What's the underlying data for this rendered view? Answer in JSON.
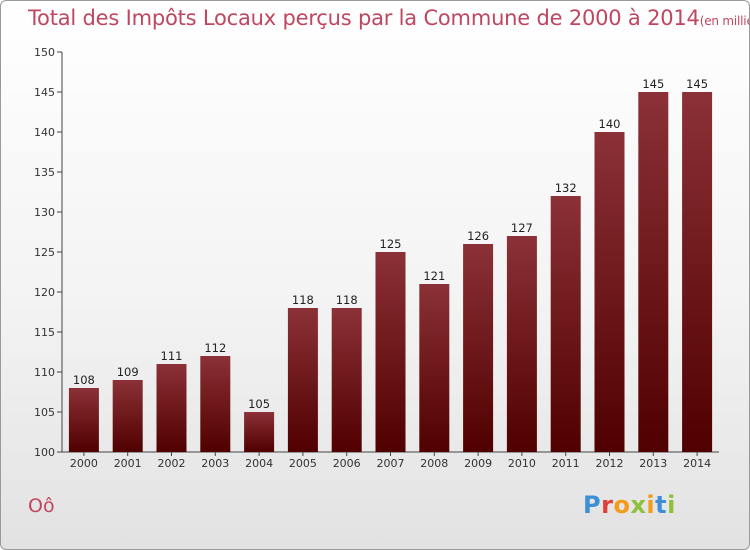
{
  "title": "Total des Impôts Locaux perçus par la Commune de 2000 à 2014",
  "title_unit": "(en milliers d'€)",
  "commune": "Oô",
  "logo_text": "Proxiti",
  "colors": {
    "title": "#c0465f",
    "bar_top": "#8b3137",
    "bar_bottom": "#500000"
  },
  "chart_data": {
    "type": "bar",
    "title": "Total des Impôts Locaux perçus par la Commune de 2000 à 2014",
    "xlabel": "",
    "ylabel": "",
    "categories": [
      "2000",
      "2001",
      "2002",
      "2003",
      "2004",
      "2005",
      "2006",
      "2007",
      "2008",
      "2009",
      "2010",
      "2011",
      "2012",
      "2013",
      "2014"
    ],
    "values": [
      108,
      109,
      111,
      112,
      105,
      118,
      118,
      125,
      121,
      126,
      127,
      132,
      140,
      145,
      145
    ],
    "ylim": [
      100,
      150
    ],
    "yticks": [
      100,
      105,
      110,
      115,
      120,
      125,
      130,
      135,
      140,
      145,
      150
    ],
    "grid": false
  }
}
